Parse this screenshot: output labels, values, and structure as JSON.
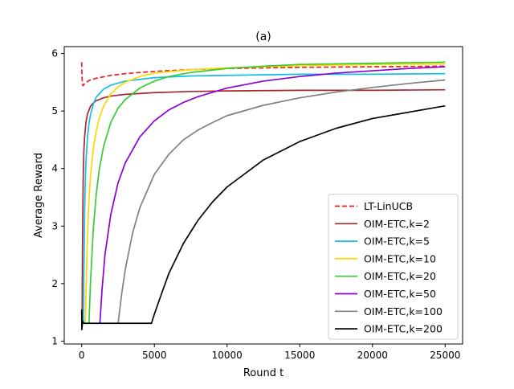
{
  "chart_data": {
    "type": "line",
    "title": "(a)",
    "xlabel": "Round t",
    "ylabel": "Average Reward",
    "xlim": [
      -1200,
      26200
    ],
    "ylim": [
      0.95,
      6.12
    ],
    "xticks": [
      0,
      5000,
      10000,
      15000,
      20000,
      25000
    ],
    "xtick_labels": [
      "0",
      "5000",
      "10000",
      "15000",
      "20000",
      "25000"
    ],
    "yticks": [
      1,
      2,
      3,
      4,
      5,
      6
    ],
    "ytick_labels": [
      "1",
      "2",
      "3",
      "4",
      "5",
      "6"
    ],
    "grid": false,
    "legend_position": "lower-right",
    "series": [
      {
        "name": "LT-LinUCB",
        "color": "#e8231f",
        "dash": true,
        "x": [
          0,
          20,
          50,
          100,
          200,
          500,
          1000,
          2000,
          3000,
          5000,
          7500,
          10000,
          15000,
          20000,
          25000
        ],
        "y": [
          5.85,
          5.6,
          5.46,
          5.44,
          5.48,
          5.53,
          5.57,
          5.62,
          5.65,
          5.69,
          5.72,
          5.74,
          5.76,
          5.77,
          5.78
        ]
      },
      {
        "name": "OIM-ETC,k=2",
        "color": "#a52a2a",
        "x": [
          25,
          50,
          100,
          150,
          200,
          300,
          400,
          600,
          800,
          1000,
          1500,
          2000,
          3000,
          5000,
          7500,
          10000,
          15000,
          20000,
          25000
        ],
        "y": [
          1.3,
          2.5,
          3.8,
          4.3,
          4.55,
          4.82,
          4.95,
          5.08,
          5.14,
          5.18,
          5.23,
          5.26,
          5.29,
          5.32,
          5.34,
          5.35,
          5.36,
          5.36,
          5.37
        ]
      },
      {
        "name": "OIM-ETC,k=5",
        "color": "#17bce8",
        "x": [
          125,
          150,
          200,
          250,
          300,
          400,
          500,
          600,
          800,
          1000,
          1500,
          2000,
          3000,
          5000,
          7500,
          10000,
          15000,
          20000,
          25000
        ],
        "y": [
          1.3,
          2.2,
          3.2,
          3.8,
          4.15,
          4.55,
          4.78,
          4.93,
          5.12,
          5.24,
          5.38,
          5.45,
          5.52,
          5.58,
          5.61,
          5.62,
          5.64,
          5.64,
          5.65
        ]
      },
      {
        "name": "OIM-ETC,k=10",
        "color": "#ffd700",
        "x": [
          250,
          300,
          400,
          500,
          600,
          800,
          1000,
          1200,
          1500,
          2000,
          2500,
          3000,
          4000,
          5000,
          7500,
          10000,
          15000,
          20000,
          25000
        ],
        "y": [
          1.3,
          1.9,
          2.85,
          3.45,
          3.85,
          4.35,
          4.65,
          4.87,
          5.08,
          5.3,
          5.42,
          5.5,
          5.6,
          5.66,
          5.72,
          5.75,
          5.79,
          5.81,
          5.82
        ]
      },
      {
        "name": "OIM-ETC,k=20",
        "color": "#33cc33",
        "x": [
          500,
          600,
          800,
          1000,
          1200,
          1500,
          2000,
          2500,
          3000,
          4000,
          5000,
          6000,
          7500,
          10000,
          12500,
          15000,
          20000,
          25000
        ],
        "y": [
          1.3,
          2.0,
          2.95,
          3.55,
          3.97,
          4.38,
          4.8,
          5.05,
          5.2,
          5.4,
          5.52,
          5.6,
          5.67,
          5.74,
          5.78,
          5.81,
          5.83,
          5.85
        ]
      },
      {
        "name": "OIM-ETC,k=50",
        "color": "#8b00d8",
        "x": [
          1250,
          1400,
          1600,
          2000,
          2500,
          3000,
          4000,
          5000,
          6000,
          7000,
          8000,
          10000,
          12500,
          15000,
          17500,
          20000,
          22500,
          25000
        ],
        "y": [
          1.3,
          1.9,
          2.5,
          3.2,
          3.75,
          4.1,
          4.55,
          4.83,
          5.02,
          5.15,
          5.25,
          5.4,
          5.52,
          5.6,
          5.66,
          5.7,
          5.74,
          5.77
        ]
      },
      {
        "name": "OIM-ETC,k=100",
        "color": "#808080",
        "x": [
          2500,
          2750,
          3000,
          3500,
          4000,
          5000,
          6000,
          7000,
          8000,
          9000,
          10000,
          12500,
          15000,
          17500,
          20000,
          22500,
          25000
        ],
        "y": [
          1.3,
          1.82,
          2.25,
          2.88,
          3.32,
          3.9,
          4.25,
          4.5,
          4.67,
          4.8,
          4.92,
          5.1,
          5.23,
          5.33,
          5.41,
          5.48,
          5.54
        ]
      },
      {
        "name": "OIM-ETC,k=200",
        "color": "#000000",
        "x": [
          0,
          10,
          20,
          30,
          50,
          100,
          500,
          1000,
          2000,
          3000,
          4000,
          4800,
          5000,
          5500,
          6000,
          7000,
          8000,
          9000,
          10000,
          12500,
          15000,
          17500,
          20000,
          22500,
          25000
        ],
        "y": [
          1.55,
          1.2,
          1.5,
          1.25,
          1.35,
          1.31,
          1.31,
          1.31,
          1.31,
          1.31,
          1.31,
          1.31,
          1.47,
          1.83,
          2.18,
          2.7,
          3.1,
          3.42,
          3.68,
          4.15,
          4.47,
          4.7,
          4.87,
          4.98,
          5.09
        ]
      }
    ]
  }
}
